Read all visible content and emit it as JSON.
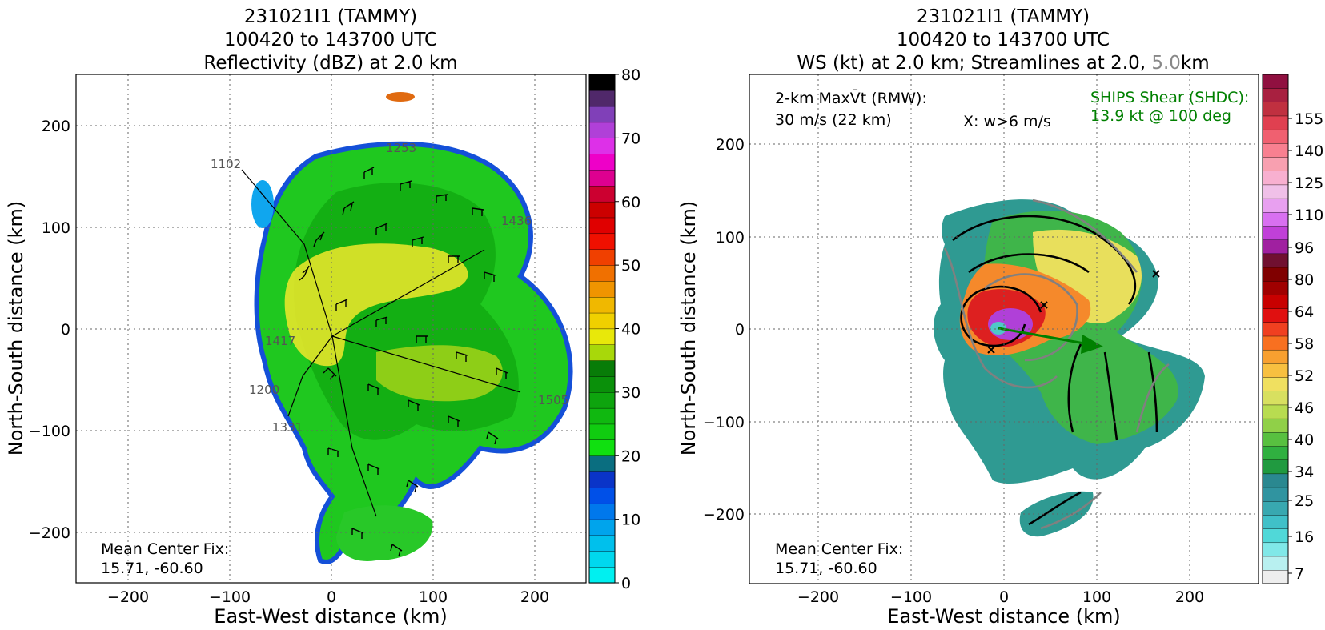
{
  "left": {
    "title_lines": [
      "231021I1 (TAMMY)",
      "100420 to 143700 UTC",
      "Reflectivity (dBZ) at 2.0 km"
    ],
    "xlabel": "East-West distance (km)",
    "ylabel": "North-South distance (km)",
    "center_fix_label": "Mean Center Fix:",
    "center_fix_value": "15.71, -60.60",
    "track_labels": [
      "1102",
      "1253",
      "1200",
      "1331",
      "1417",
      "1505",
      "1436"
    ],
    "colorbar_ticks": [
      "0",
      "10",
      "20",
      "30",
      "40",
      "50",
      "60",
      "70",
      "80"
    ]
  },
  "right": {
    "title_line1": "231021I1 (TAMMY)",
    "title_line2": "100420 to 143700 UTC",
    "title_line3_a": "WS (kt) at 2.0 km; Streamlines at 2.0, ",
    "title_line3_b": "5.0",
    "title_line3_c": "km",
    "xlabel": "East-West distance (km)",
    "ylabel": "North-South distance (km)",
    "maxvt_label": "2-km MaxV̄t (RMW):",
    "maxvt_value": "30 m/s (22 km)",
    "w_note": "X: w>6 m/s",
    "ships_label": "SHIPS Shear (SHDC):",
    "ships_value": "13.9 kt @ 100 deg",
    "center_fix_label": "Mean Center Fix:",
    "center_fix_value": "15.71, -60.60",
    "colorbar_ticks": [
      "7",
      "16",
      "25",
      "34",
      "40",
      "46",
      "52",
      "58",
      "64",
      "80",
      "96",
      "110",
      "125",
      "140",
      "155"
    ]
  },
  "chart_data": [
    {
      "type": "heatmap",
      "title": "231021I1 (TAMMY) 100420 to 143700 UTC Reflectivity (dBZ) at 2.0 km",
      "xlabel": "East-West distance (km)",
      "ylabel": "North-South distance (km)",
      "xlim": [
        -250,
        250
      ],
      "ylim": [
        -250,
        250
      ],
      "xticks": [
        -200,
        -100,
        0,
        100,
        200
      ],
      "yticks": [
        -200,
        -100,
        0,
        100,
        200
      ],
      "grid": true,
      "colorbar": {
        "label": "dBZ",
        "min": 0,
        "max": 80,
        "ticks": [
          0,
          10,
          20,
          30,
          40,
          50,
          60,
          70,
          80
        ]
      },
      "mean_center_fix": [
        15.71,
        -60.6
      ],
      "flight_track_labels": [
        "1102",
        "1253",
        "1200",
        "1331",
        "1417",
        "1505",
        "1436"
      ]
    },
    {
      "type": "heatmap",
      "title": "231021I1 (TAMMY) 100420 to 143700 UTC WS (kt) at 2.0 km; Streamlines at 2.0, 5.0km",
      "xlabel": "East-West distance (km)",
      "ylabel": "North-South distance (km)",
      "xlim": [
        -275,
        275
      ],
      "ylim": [
        -275,
        275
      ],
      "xticks": [
        -200,
        -100,
        0,
        100,
        200
      ],
      "yticks": [
        -200,
        -100,
        0,
        100,
        200
      ],
      "grid": true,
      "colorbar": {
        "label": "kt",
        "min": 7,
        "max": 160,
        "ticks": [
          7,
          16,
          25,
          34,
          40,
          46,
          52,
          58,
          64,
          80,
          96,
          110,
          125,
          140,
          155
        ]
      },
      "max_vt_ms": 30,
      "rmw_km": 22,
      "ships_shear_kt": 13.9,
      "ships_shear_deg": 100,
      "mean_center_fix": [
        15.71,
        -60.6
      ]
    }
  ],
  "colors": {
    "ships": "#008000",
    "streamline_low": "#000000",
    "streamline_high": "#808080"
  }
}
